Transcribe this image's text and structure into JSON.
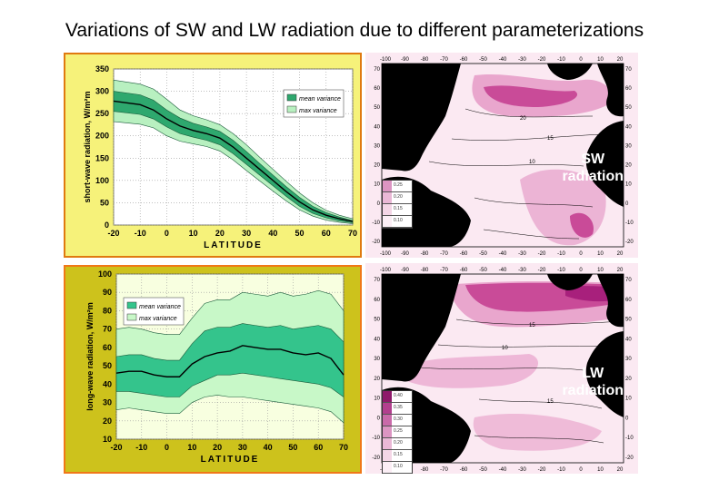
{
  "slide": {
    "title": "Variations of SW and LW radiation due to different parameterizations"
  },
  "chart_data": [
    {
      "type": "area",
      "ylabel": "short-wave radiation, W/m²m",
      "xlabel": "LATITUDE",
      "xlim": [
        -20,
        70
      ],
      "ylim": [
        0,
        350
      ],
      "xticks": [
        "-20",
        "-10",
        "0",
        "10",
        "20",
        "30",
        "40",
        "50",
        "60",
        "70"
      ],
      "yticks": [
        "0",
        "50",
        "100",
        "150",
        "200",
        "250",
        "300",
        "350"
      ],
      "legend": [
        "mean variance",
        "max variance"
      ],
      "legend_position": "top-right",
      "grid": true,
      "x": [
        -20,
        -10,
        -5,
        0,
        5,
        10,
        15,
        20,
        25,
        30,
        35,
        40,
        45,
        50,
        55,
        60,
        65,
        70
      ],
      "series": [
        {
          "name": "mean",
          "values": [
            278,
            270,
            258,
            238,
            222,
            212,
            205,
            195,
            175,
            150,
            125,
            100,
            75,
            52,
            34,
            22,
            14,
            8
          ]
        },
        {
          "name": "mean variance",
          "lower": [
            255,
            248,
            238,
            220,
            205,
            197,
            190,
            180,
            160,
            136,
            112,
            88,
            64,
            42,
            26,
            16,
            9,
            5
          ],
          "upper": [
            300,
            292,
            280,
            258,
            240,
            228,
            220,
            210,
            190,
            165,
            138,
            112,
            86,
            62,
            42,
            28,
            18,
            10
          ]
        },
        {
          "name": "max variance",
          "lower": [
            232,
            226,
            218,
            200,
            188,
            182,
            176,
            166,
            146,
            122,
            99,
            76,
            54,
            34,
            20,
            11,
            6,
            3
          ],
          "upper": [
            325,
            316,
            305,
            282,
            258,
            245,
            236,
            225,
            205,
            180,
            152,
            125,
            98,
            72,
            50,
            33,
            22,
            14
          ]
        }
      ],
      "colors": {
        "mean_variance": "#2ea86e",
        "max_variance": "#b8f0c0",
        "panel": "#f6f27a",
        "plot": "#ffffff"
      }
    },
    {
      "type": "area",
      "ylabel": "long-wave radiation, W/m²m",
      "xlabel": "LATITUDE",
      "xlim": [
        -20,
        70
      ],
      "ylim": [
        10,
        100
      ],
      "xticks": [
        "-20",
        "-10",
        "0",
        "10",
        "20",
        "30",
        "40",
        "50",
        "60",
        "70"
      ],
      "yticks": [
        "10",
        "20",
        "30",
        "40",
        "50",
        "60",
        "70",
        "80",
        "90",
        "100"
      ],
      "legend": [
        "mean variance",
        "max variance"
      ],
      "legend_position": "top-left",
      "grid": true,
      "x": [
        -20,
        -15,
        -10,
        -5,
        0,
        5,
        10,
        15,
        20,
        25,
        30,
        35,
        40,
        45,
        50,
        55,
        60,
        65,
        70
      ],
      "series": [
        {
          "name": "mean",
          "values": [
            46,
            47,
            47,
            45,
            44,
            44,
            51,
            55,
            57,
            58,
            61,
            60,
            59,
            59,
            57,
            56,
            57,
            54,
            45
          ]
        },
        {
          "name": "mean variance",
          "lower": [
            36,
            36,
            35,
            34,
            33,
            33,
            39,
            42,
            45,
            45,
            46,
            45,
            44,
            43,
            42,
            41,
            40,
            38,
            33
          ],
          "upper": [
            55,
            56,
            56,
            54,
            53,
            53,
            62,
            69,
            71,
            71,
            73,
            72,
            71,
            72,
            70,
            71,
            72,
            70,
            63
          ]
        },
        {
          "name": "max variance",
          "lower": [
            26,
            27,
            26,
            25,
            24,
            24,
            30,
            33,
            34,
            33,
            33,
            32,
            31,
            30,
            29,
            28,
            27,
            25,
            19
          ],
          "upper": [
            70,
            71,
            70,
            68,
            67,
            67,
            76,
            84,
            86,
            86,
            90,
            89,
            88,
            90,
            88,
            89,
            91,
            89,
            80
          ]
        }
      ],
      "colors": {
        "mean_variance": "#34c48c",
        "max_variance": "#c8f8c8",
        "panel": "#cdc21c",
        "plot": "#f8ffe0"
      }
    }
  ],
  "maps": {
    "lon_labels": [
      "-100",
      "-90",
      "-80",
      "-70",
      "-60",
      "-50",
      "-40",
      "-30",
      "-20",
      "-10",
      "0",
      "10",
      "20"
    ],
    "lat_labels": [
      "70",
      "60",
      "50",
      "40",
      "30",
      "20",
      "10",
      "0",
      "-10",
      "-20"
    ],
    "sw": {
      "label_line1": "SW",
      "label_line2": "radiation",
      "legend": [
        "0.25",
        "0.20",
        "0.15",
        "0.10"
      ],
      "contour_labels": [
        "20",
        "15",
        "10"
      ]
    },
    "lw": {
      "label_line1": "LW",
      "label_line2": "radiation",
      "legend": [
        "0.40",
        "0.35",
        "0.30",
        "0.25",
        "0.20",
        "0.15",
        "0.10"
      ],
      "contour_labels": [
        "15",
        "10",
        "15"
      ]
    },
    "colors": {
      "land": "#000000",
      "light": "#fbe9f2",
      "mid": "#e9a6cd",
      "dark": "#c94b98",
      "darkest": "#a8207c"
    }
  }
}
